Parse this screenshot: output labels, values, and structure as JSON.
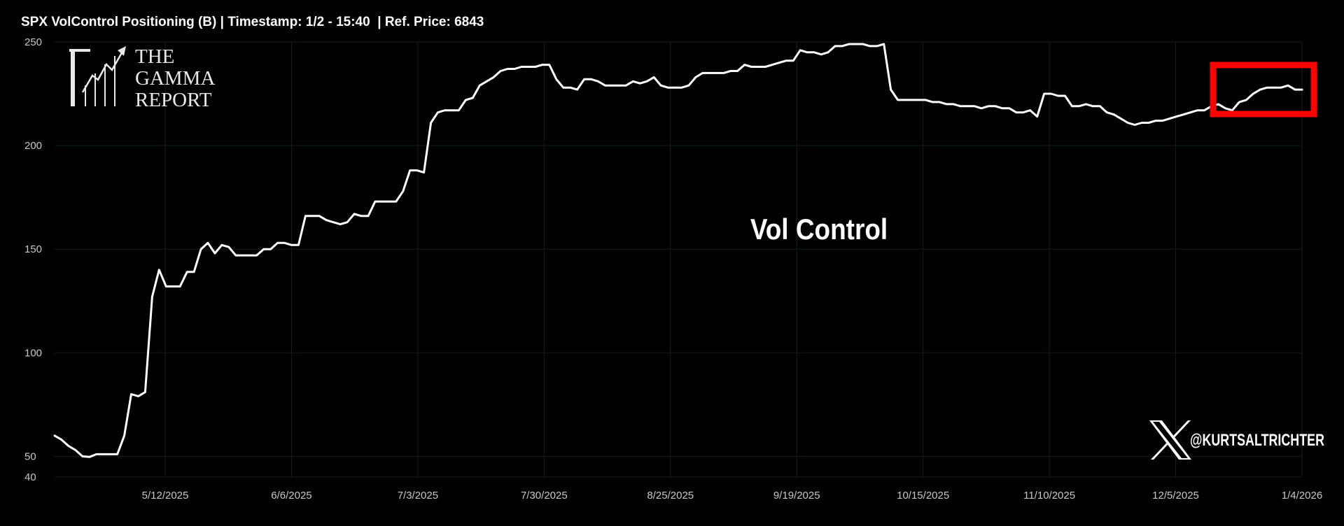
{
  "chart_data": {
    "type": "line",
    "title": "SPX VolControl Positioning (B) | Timestamp: 1/2 - 15:40  | Ref. Price: 6843",
    "annotation": "Vol Control",
    "brand": {
      "line1": "THE",
      "line2": "GAMMA",
      "line3": "REPORT",
      "handle": "@KURTSALTRICHTER"
    },
    "ylim": [
      40,
      250
    ],
    "yticks": [
      40,
      50,
      100,
      150,
      200,
      250
    ],
    "xticks": [
      "5/12/2025",
      "6/6/2025",
      "7/3/2025",
      "7/30/2025",
      "8/25/2025",
      "9/19/2025",
      "10/15/2025",
      "11/10/2025",
      "12/5/2025",
      "1/4/2026"
    ],
    "grid": true,
    "colors": {
      "background": "#000000",
      "line": "#ffffff",
      "grid": "#0f2020",
      "highlight_box": "#ff0000",
      "axis_text": "#c8c8c8"
    },
    "series": [
      {
        "values": [
          60,
          58,
          55,
          53,
          50,
          49.7,
          51,
          51,
          51,
          51,
          60,
          80,
          79,
          81,
          127,
          140,
          132,
          132,
          132,
          139,
          139,
          150,
          153,
          148,
          152,
          151,
          147,
          147,
          147,
          147,
          150,
          150,
          153,
          153,
          152,
          152,
          166,
          166,
          166,
          164,
          163,
          162,
          163,
          167,
          166,
          166,
          173,
          173,
          173,
          173,
          178,
          188,
          188,
          187,
          211,
          216,
          217,
          217,
          217,
          222,
          223,
          229,
          231,
          233,
          236,
          237,
          237,
          238,
          238,
          238,
          239,
          239,
          232,
          228,
          228,
          227,
          232,
          232,
          231,
          229,
          229,
          229,
          229,
          231,
          230,
          231,
          233,
          229,
          228,
          228,
          228,
          229,
          233,
          235,
          235,
          235,
          235,
          236,
          236,
          239,
          238,
          238,
          238,
          239,
          240,
          241,
          241,
          246,
          245,
          245,
          244,
          245,
          248,
          248,
          249,
          249,
          249,
          248,
          248,
          249,
          227,
          222,
          222,
          222,
          222,
          222,
          221,
          221,
          220,
          220,
          219,
          219,
          219,
          218,
          219,
          219,
          218,
          218,
          216,
          216,
          217,
          214,
          225,
          225,
          224,
          224,
          219,
          219,
          220,
          219,
          219,
          216,
          215,
          213,
          211,
          210,
          211,
          211,
          212,
          212,
          213,
          214,
          215,
          216,
          217,
          217,
          219,
          220,
          218,
          217,
          221,
          222,
          225,
          227,
          228,
          228,
          228,
          229,
          227,
          227
        ]
      }
    ]
  }
}
